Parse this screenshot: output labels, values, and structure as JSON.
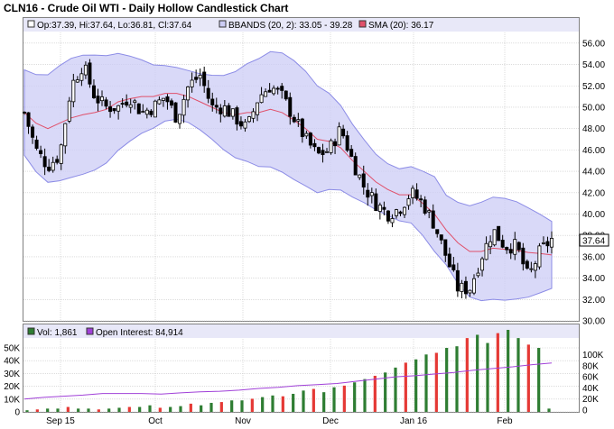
{
  "header": {
    "title": "CLN16 - Crude Oil WTI - Daily Hollow Candlestick Chart"
  },
  "price_legend": {
    "ohlc": "Op:37.39, Hi:37.64, Lo:36.81, Cl:37.64",
    "bbands": "BBANDS (20, 2): 33.05 - 39.28",
    "sma": "SMA (20): 36.17"
  },
  "volume_legend": {
    "vol": "Vol: 1,861",
    "oi": "Open Interest: 84,914"
  },
  "last_price_label": "37.64",
  "colors": {
    "band_fill": "#ccccf5",
    "band_line": "#8c8ce6",
    "sma": "#e0506a",
    "up_vol": "#2e7d32",
    "down_vol": "#e53935",
    "oi_line": "#a040d8",
    "grid": "#c8c8c8",
    "legend_bg": "#e8e8f8"
  },
  "chart_data": [
    {
      "type": "candlestick",
      "title": "CLN16 - Crude Oil WTI - Daily Hollow Candlestick Chart",
      "x_ticks": [
        "Sep 15",
        "Oct",
        "Nov",
        "Dec",
        "Jan 16",
        "Feb"
      ],
      "y_ticks": [
        "30.00",
        "32.00",
        "34.00",
        "36.00",
        "38.00",
        "40.00",
        "42.00",
        "44.00",
        "46.00",
        "48.00",
        "50.00",
        "52.00",
        "54.00",
        "56.00"
      ],
      "ylim": [
        30,
        57
      ],
      "grid": true,
      "series": [
        {
          "name": "Price",
          "values": [
            49.5,
            46,
            44.5,
            45.5,
            52,
            54,
            51,
            50,
            50,
            51,
            49.5,
            50,
            51,
            49,
            52,
            53,
            50,
            50,
            49,
            48,
            51,
            52,
            51,
            49,
            47,
            45.5,
            46,
            48,
            45,
            42.5,
            41,
            40,
            40.5,
            42,
            41,
            39,
            36,
            33,
            33,
            36,
            38.5,
            37,
            37,
            34,
            36.5,
            37.64
          ]
        },
        {
          "name": "SMA (20)",
          "values": [
            49.5,
            48.5,
            48,
            48.5,
            49,
            49.3,
            49.5,
            49.8,
            50.5,
            50.8,
            51,
            51,
            51.3,
            51.3,
            51,
            50.5,
            50,
            49.5,
            49.3,
            49.5,
            49.5,
            49.8,
            49.5,
            48.8,
            48,
            47,
            46.8,
            46.2,
            45,
            44,
            43,
            42.3,
            41.8,
            41.8,
            41,
            40,
            38.5,
            37.3,
            36.5,
            36.5,
            36.8,
            36.7,
            36.6,
            36.4,
            36.3,
            36.17
          ]
        }
      ],
      "last_value": 37.64
    },
    {
      "type": "bar",
      "x_ticks": [
        "Sep 15",
        "Oct",
        "Nov",
        "Dec",
        "Jan 16",
        "Feb"
      ],
      "y_ticks_left": [
        "0",
        "10K",
        "20K",
        "30K",
        "40K",
        "50K"
      ],
      "y_ticks_right": [
        "0",
        "20K",
        "40K",
        "60K",
        "80K",
        "100K"
      ],
      "series": [
        {
          "name": "Vol",
          "values": [
            1,
            1.5,
            2,
            2,
            3,
            2,
            2,
            1.5,
            2,
            2.5,
            3,
            3,
            4,
            2.5,
            3,
            3.5,
            5,
            4,
            5.5,
            6,
            7,
            7,
            8,
            9,
            10,
            9.5,
            11,
            13,
            14,
            12,
            15,
            16,
            18,
            20,
            22,
            24,
            27,
            30,
            32,
            35,
            36,
            39,
            40,
            45,
            47,
            42,
            48,
            50,
            45,
            41,
            39,
            2
          ]
        },
        {
          "name": "Open Interest",
          "values": [
            20,
            23,
            25,
            27,
            30,
            30,
            30,
            29,
            31,
            33,
            34,
            36,
            39,
            41,
            44,
            46,
            48,
            52,
            56,
            60,
            62,
            65,
            68,
            72,
            75,
            78,
            82,
            84.9
          ]
        }
      ]
    }
  ]
}
